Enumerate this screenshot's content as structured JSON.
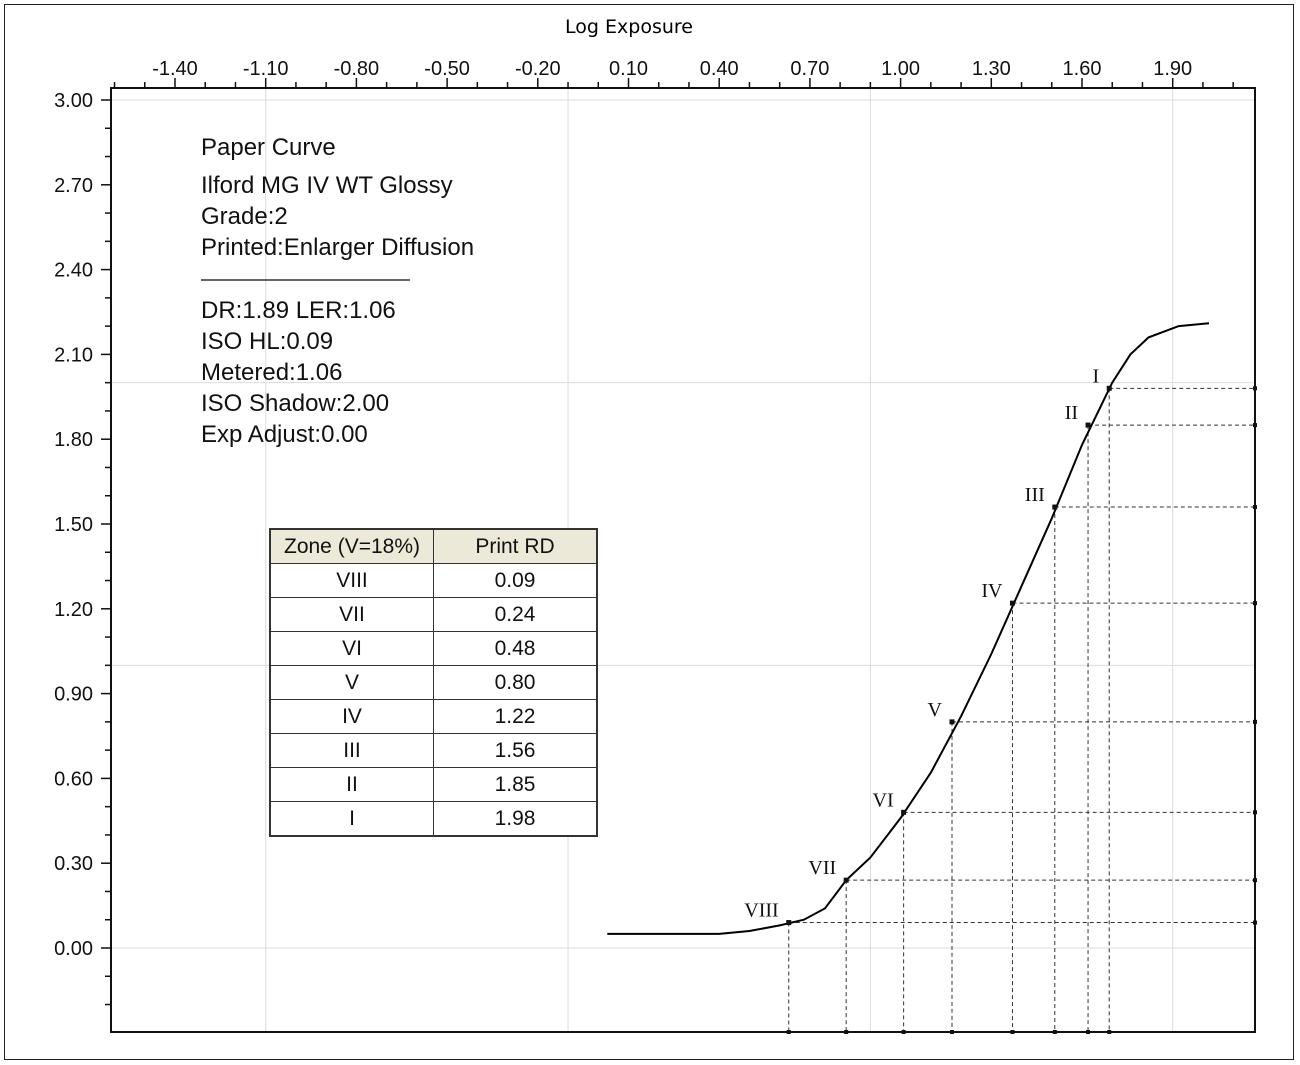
{
  "chart_data": {
    "type": "line",
    "xlabel": "Log Exposure",
    "ylabel": "",
    "xlim": [
      -1.7,
      2.1
    ],
    "ylim": [
      -0.28,
      3.0
    ],
    "x_ticks": [
      "-1.40",
      "-1.10",
      "-0.80",
      "-0.50",
      "-0.20",
      "0.10",
      "0.40",
      "0.70",
      "1.00",
      "1.30",
      "1.60",
      "1.90"
    ],
    "y_ticks": [
      "3.00",
      "2.70",
      "2.40",
      "2.10",
      "1.80",
      "1.50",
      "1.20",
      "0.90",
      "0.60",
      "0.30",
      "0.00"
    ],
    "x_gridlines": [
      -1.1,
      -0.1,
      0.9,
      1.9
    ],
    "y_gridlines": [
      0.0,
      1.0,
      2.0,
      3.0
    ],
    "curve": {
      "x": [
        0.03,
        0.2,
        0.4,
        0.5,
        0.6,
        0.68,
        0.75,
        0.82,
        0.9,
        1.0,
        1.1,
        1.2,
        1.3,
        1.4,
        1.5,
        1.6,
        1.7,
        1.76,
        1.82,
        1.92,
        2.02
      ],
      "y": [
        0.05,
        0.05,
        0.05,
        0.06,
        0.08,
        0.1,
        0.14,
        0.24,
        0.32,
        0.46,
        0.62,
        0.82,
        1.04,
        1.28,
        1.52,
        1.78,
        2.0,
        2.1,
        2.16,
        2.2,
        2.21
      ]
    },
    "zone_points": [
      {
        "zone": "VIII",
        "x": 0.63,
        "y": 0.09
      },
      {
        "zone": "VII",
        "x": 0.82,
        "y": 0.24
      },
      {
        "zone": "VI",
        "x": 1.01,
        "y": 0.48
      },
      {
        "zone": "V",
        "x": 1.17,
        "y": 0.8
      },
      {
        "zone": "IV",
        "x": 1.37,
        "y": 1.22
      },
      {
        "zone": "III",
        "x": 1.51,
        "y": 1.56
      },
      {
        "zone": "II",
        "x": 1.62,
        "y": 1.85
      },
      {
        "zone": "I",
        "x": 1.69,
        "y": 1.98
      }
    ],
    "info": {
      "title": "Paper Curve",
      "lines": [
        "Ilford MG IV WT  Glossy",
        "Grade:2",
        "Printed:Enlarger Diffusion"
      ],
      "stats": [
        "DR:1.89  LER:1.06",
        "ISO HL:0.09",
        "Metered:1.06",
        "ISO Shadow:2.00",
        "Exp Adjust:0.00"
      ]
    },
    "table": {
      "headers": [
        "Zone (V=18%)",
        "Print RD"
      ],
      "rows": [
        [
          "VIII",
          "0.09"
        ],
        [
          "VII",
          "0.24"
        ],
        [
          "VI",
          "0.48"
        ],
        [
          "V",
          "0.80"
        ],
        [
          "IV",
          "1.22"
        ],
        [
          "III",
          "1.56"
        ],
        [
          "II",
          "1.85"
        ],
        [
          "I",
          "1.98"
        ]
      ]
    }
  }
}
